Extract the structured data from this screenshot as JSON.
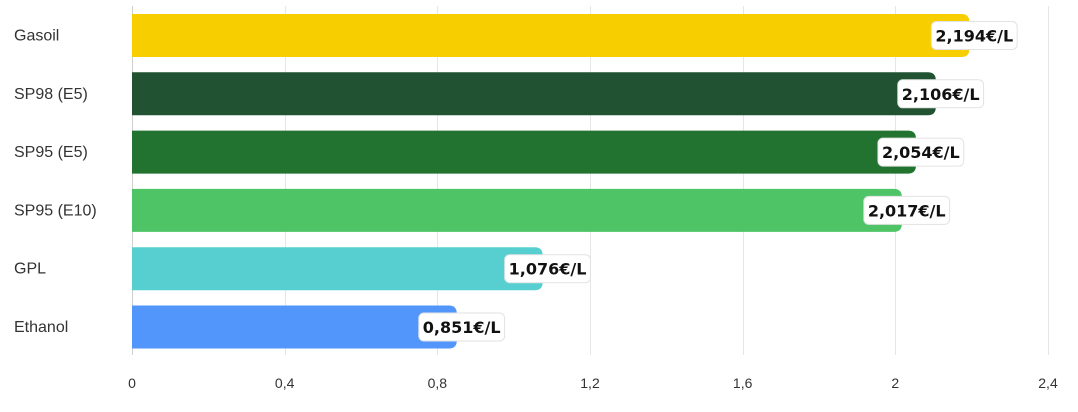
{
  "chart_data": {
    "type": "bar",
    "orientation": "horizontal",
    "categories": [
      "Gasoil",
      "SP98 (E5)",
      "SP95 (E5)",
      "SP95 (E10)",
      "GPL",
      "Ethanol"
    ],
    "values": [
      2.194,
      2.106,
      2.054,
      2.017,
      1.076,
      0.851
    ],
    "value_labels": [
      "2,194€/L",
      "2,106€/L",
      "2,054€/L",
      "2,017€/L",
      "1,076€/L",
      "0,851€/L"
    ],
    "colors": [
      "#f7cf00",
      "#215232",
      "#227330",
      "#4ec466",
      "#57cfd0",
      "#5295fb"
    ],
    "x_ticks": [
      0,
      0.4,
      0.8,
      1.2,
      1.6,
      2,
      2.4
    ],
    "x_tick_labels": [
      "0",
      "0,4",
      "0,8",
      "1,2",
      "1,6",
      "2",
      "2,4"
    ],
    "xlim": [
      0,
      2.4
    ],
    "grid": "vertical",
    "title": "",
    "xlabel": "",
    "ylabel": ""
  }
}
